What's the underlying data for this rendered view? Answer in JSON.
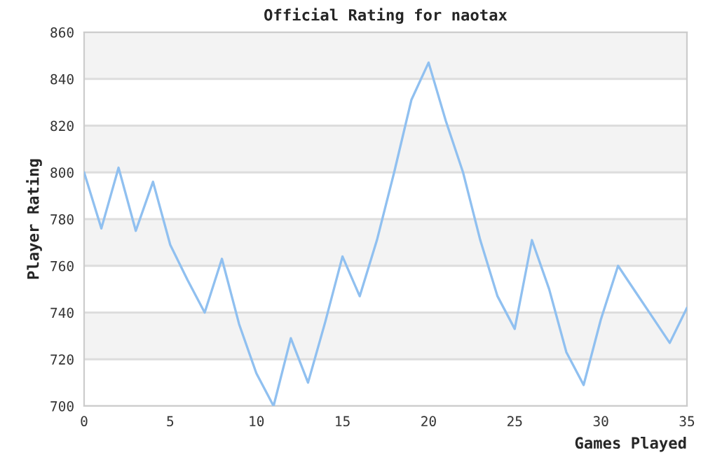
{
  "chart_data": {
    "type": "line",
    "title": "Official Rating for naotax",
    "xlabel": "Games Played",
    "ylabel": "Player Rating",
    "x": [
      0,
      1,
      2,
      3,
      4,
      5,
      6,
      7,
      8,
      9,
      10,
      11,
      12,
      13,
      14,
      15,
      16,
      17,
      18,
      19,
      20,
      21,
      22,
      23,
      24,
      25,
      26,
      27,
      28,
      29,
      30,
      31,
      32,
      33,
      34,
      35
    ],
    "series": [
      {
        "color": "#90c0f0",
        "values": [
          800,
          776,
          802,
          775,
          796,
          769,
          754,
          740,
          763,
          735,
          714,
          700,
          729,
          710,
          736,
          764,
          747,
          771,
          800,
          831,
          847,
          822,
          800,
          771,
          747,
          733,
          771,
          750,
          723,
          709,
          737,
          760,
          749,
          738,
          727,
          742
        ]
      }
    ],
    "xlim": [
      0,
      35
    ],
    "xticks": [
      0,
      5,
      10,
      15,
      20,
      25,
      30,
      35
    ],
    "ylim": [
      700,
      860
    ],
    "yticks": [
      700,
      720,
      740,
      760,
      780,
      800,
      820,
      840,
      860
    ],
    "grid": "y",
    "marker": "none",
    "line_style": "solid"
  }
}
